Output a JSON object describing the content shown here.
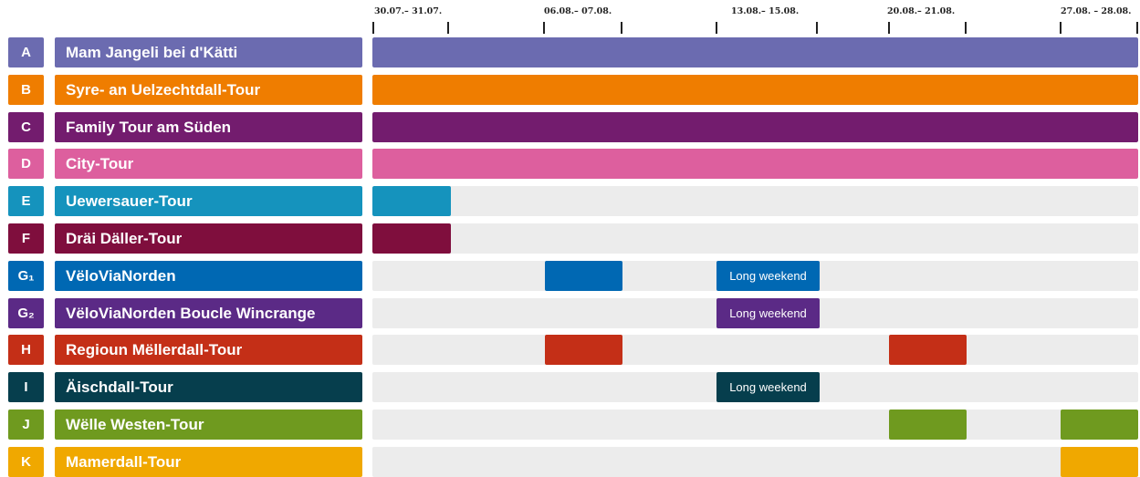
{
  "chart_data": {
    "type": "gantt",
    "date_ranges": [
      "30.07.– 31.07.",
      "06.08.– 07.08.",
      "13.08.– 15.08.",
      "20.08.– 21.08.",
      "27.08. – 28.08."
    ],
    "tours": [
      {
        "letter": "A",
        "name": "Mam Jangeli bei d'Kätti",
        "color": "#6b6bb0",
        "periods": [
          "30.07.– 31.07.",
          "06.08.– 07.08.",
          "13.08.– 15.08.",
          "20.08.– 21.08.",
          "27.08. – 28.08."
        ],
        "full_bar": true,
        "note": ""
      },
      {
        "letter": "B",
        "name": "Syre- an Uelzechtdall-Tour",
        "color": "#ef7d00",
        "periods": [
          "30.07.– 31.07.",
          "06.08.– 07.08.",
          "13.08.– 15.08.",
          "20.08.– 21.08.",
          "27.08. – 28.08."
        ],
        "full_bar": true,
        "note": ""
      },
      {
        "letter": "C",
        "name": "Family Tour am Süden",
        "color": "#731c6e",
        "periods": [
          "30.07.– 31.07.",
          "06.08.– 07.08.",
          "13.08.– 15.08.",
          "20.08.– 21.08.",
          "27.08. – 28.08."
        ],
        "full_bar": true,
        "note": ""
      },
      {
        "letter": "D",
        "name": "City-Tour",
        "color": "#dd5f9e",
        "periods": [
          "30.07.– 31.07.",
          "06.08.– 07.08.",
          "13.08.– 15.08.",
          "20.08.– 21.08.",
          "27.08. – 28.08."
        ],
        "full_bar": true,
        "note": ""
      },
      {
        "letter": "E",
        "name": "Uewersauer-Tour",
        "color": "#1593bd",
        "periods": [
          "30.07.– 31.07."
        ],
        "full_bar": false,
        "note": ""
      },
      {
        "letter": "F",
        "name": "Dräi Däller-Tour",
        "color": "#7f0e3d",
        "periods": [
          "30.07.– 31.07."
        ],
        "full_bar": false,
        "note": ""
      },
      {
        "letter": "G₁",
        "name": "VëloViaNorden",
        "color": "#0068b3",
        "periods": [
          "06.08.– 07.08.",
          "13.08.– 15.08."
        ],
        "full_bar": false,
        "note": "Long weekend"
      },
      {
        "letter": "G₂",
        "name": "VëloViaNorden Boucle Wincrange",
        "color": "#5b2a86",
        "periods": [
          "13.08.– 15.08."
        ],
        "full_bar": false,
        "note": "Long weekend"
      },
      {
        "letter": "H",
        "name": "Regioun Mëllerdall-Tour",
        "color": "#c42f17",
        "periods": [
          "06.08.– 07.08.",
          "20.08.– 21.08."
        ],
        "full_bar": false,
        "note": ""
      },
      {
        "letter": "I",
        "name": "Äischdall-Tour",
        "color": "#063e4d",
        "periods": [
          "13.08.– 15.08."
        ],
        "full_bar": false,
        "note": "Long weekend"
      },
      {
        "letter": "J",
        "name": "Wëlle Westen-Tour",
        "color": "#6f9a1f",
        "periods": [
          "20.08.– 21.08.",
          "27.08. – 28.08."
        ],
        "full_bar": false,
        "note": ""
      },
      {
        "letter": "K",
        "name": "Mamerdall-Tour",
        "color": "#f0a800",
        "periods": [
          "27.08. – 28.08."
        ],
        "full_bar": false,
        "note": ""
      }
    ]
  }
}
